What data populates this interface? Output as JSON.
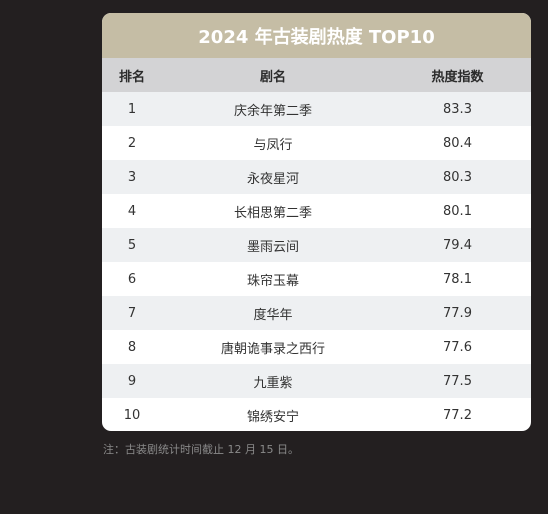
{
  "table": {
    "title": "2024 年古装剧热度 TOP10",
    "headers": {
      "rank": "排名",
      "name": "剧名",
      "heat": "热度指数"
    },
    "rows": [
      {
        "rank": "1",
        "name": "庆余年第二季",
        "heat": "83.3"
      },
      {
        "rank": "2",
        "name": "与凤行",
        "heat": "80.4"
      },
      {
        "rank": "3",
        "name": "永夜星河",
        "heat": "80.3"
      },
      {
        "rank": "4",
        "name": "长相思第二季",
        "heat": "80.1"
      },
      {
        "rank": "5",
        "name": "墨雨云间",
        "heat": "79.4"
      },
      {
        "rank": "6",
        "name": "珠帘玉幕",
        "heat": "78.1"
      },
      {
        "rank": "7",
        "name": "度华年",
        "heat": "77.9"
      },
      {
        "rank": "8",
        "name": "唐朝诡事录之西行",
        "heat": "77.6"
      },
      {
        "rank": "9",
        "name": "九重紫",
        "heat": "77.5"
      },
      {
        "rank": "10",
        "name": "锦绣安宁",
        "heat": "77.2"
      }
    ]
  },
  "note": "注：古装剧统计时间截止 12 月 15 日。",
  "colors": {
    "background": "#231f20",
    "title_bar": "#c5bda5",
    "header_row": "#d3d3d5",
    "alt_row": "#eef0f2"
  }
}
